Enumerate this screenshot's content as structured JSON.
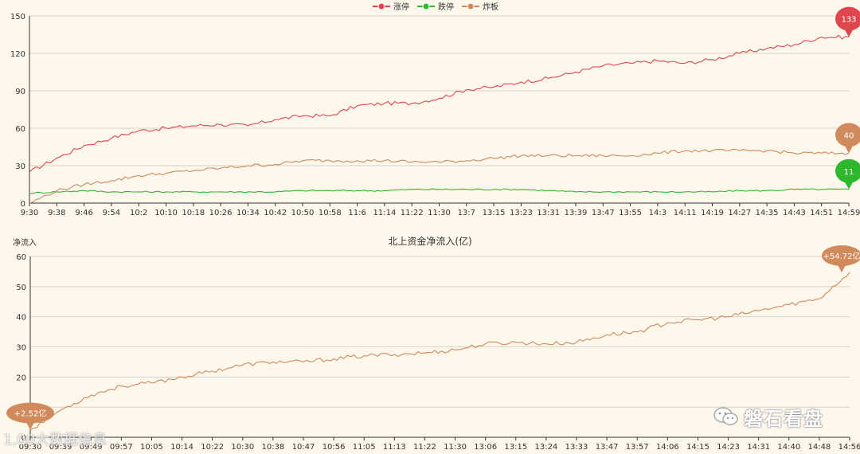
{
  "chart_data": [
    {
      "type": "line",
      "title": "",
      "xlabel": "",
      "ylabel": "",
      "ylim": [
        0,
        150
      ],
      "yticks": [
        0,
        30,
        60,
        90,
        120,
        150
      ],
      "x_labels": [
        "9:30",
        "9:38",
        "9:46",
        "9:54",
        "10:2",
        "10:10",
        "10:18",
        "10:26",
        "10:34",
        "10:42",
        "10:50",
        "10:58",
        "11:6",
        "11:14",
        "11:22",
        "11:30",
        "13:7",
        "13:15",
        "13:23",
        "13:31",
        "13:39",
        "13:47",
        "13:55",
        "14:3",
        "14:11",
        "14:19",
        "14:27",
        "14:35",
        "14:43",
        "14:51",
        "14:59"
      ],
      "legend": {
        "position": "top-center",
        "items": [
          "涨停",
          "跌停",
          "炸板"
        ]
      },
      "grid": true,
      "series": [
        {
          "name": "涨停",
          "color": "#e0474c",
          "values": [
            25,
            36,
            46,
            52,
            58,
            60,
            62,
            63,
            62,
            67,
            70,
            70,
            78,
            80,
            80,
            84,
            91,
            93,
            97,
            100,
            105,
            110,
            112,
            114,
            112,
            115,
            120,
            124,
            127,
            133,
            133
          ],
          "end_label": "133"
        },
        {
          "name": "跌停",
          "color": "#2eb82e",
          "values": [
            8,
            9,
            10,
            9,
            9,
            9,
            9,
            9,
            9,
            9,
            10,
            10,
            10,
            10,
            11,
            11,
            11,
            11,
            11,
            10,
            9,
            9,
            9,
            9,
            9,
            9,
            10,
            10,
            11,
            11,
            11
          ],
          "end_label": "11"
        },
        {
          "name": "炸板",
          "color": "#d08a5b",
          "values": [
            0,
            10,
            15,
            18,
            22,
            24,
            26,
            28,
            30,
            31,
            34,
            34,
            34,
            34,
            33,
            33,
            34,
            36,
            38,
            38,
            38,
            38,
            38,
            40,
            42,
            42,
            42,
            42,
            40,
            40,
            40
          ],
          "end_label": "40"
        }
      ]
    },
    {
      "type": "line",
      "title": "北上资金净流入(亿)",
      "xlabel": "",
      "ylabel": "净流入",
      "ylim": [
        0,
        60
      ],
      "yticks": [
        0,
        10,
        20,
        30,
        40,
        50,
        60
      ],
      "x_labels": [
        "09:30",
        "09:39",
        "09:49",
        "09:57",
        "10:05",
        "10:14",
        "10:22",
        "10:30",
        "10:38",
        "10:47",
        "10:56",
        "11:05",
        "11:13",
        "11:22",
        "11:30",
        "13:06",
        "13:15",
        "13:24",
        "13:33",
        "13:47",
        "13:57",
        "14:06",
        "14:15",
        "14:23",
        "14:31",
        "14:40",
        "14:48",
        "14:56"
      ],
      "grid": true,
      "series": [
        {
          "name": "",
          "color": "#d08a5b",
          "values": [
            2.52,
            9,
            14,
            17,
            18,
            20,
            22,
            24,
            25,
            25,
            26,
            27,
            27.5,
            28,
            29,
            31,
            31.5,
            31,
            31.5,
            34,
            35,
            38,
            39,
            40,
            42,
            44,
            46,
            54.72
          ],
          "start_label": "+2.52亿",
          "end_label": "+54.72亿"
        }
      ]
    }
  ],
  "top_right_label": "",
  "watermark_left": "1,00大数据信息",
  "brand_text": "磐石看盘",
  "colors": {
    "background": "#fdf7ec",
    "up": "#e0474c",
    "down": "#2eb82e",
    "broken": "#d08a5b"
  }
}
